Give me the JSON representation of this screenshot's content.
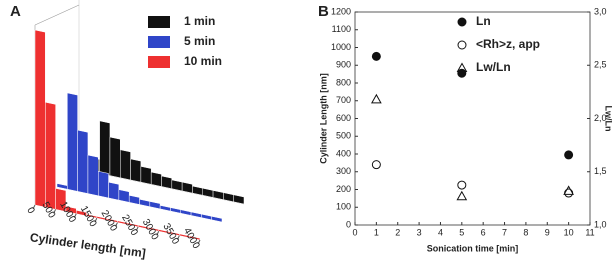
{
  "panels": [
    "A",
    "B"
  ],
  "chart_data": [
    {
      "type": "histogram",
      "xlabel": "Cylinder length [nm]",
      "bins": [
        0,
        250,
        500,
        750,
        1000,
        1250,
        1500,
        1750,
        2000,
        2250,
        2500,
        2750,
        3000,
        3250,
        3500,
        3750,
        4000
      ],
      "xlim": [
        0,
        4000
      ],
      "xticks": [
        0,
        500,
        1000,
        1500,
        2000,
        2500,
        3000,
        3500,
        4000
      ],
      "ylim": [
        0,
        100
      ],
      "series": [
        {
          "name": "1 min",
          "color": "#111111",
          "values": [
            1,
            8,
            30,
            22,
            16,
            12,
            9,
            7,
            6,
            5,
            5,
            4,
            4,
            4,
            4,
            4
          ]
        },
        {
          "name": "5 min",
          "color": "#2f45c8",
          "values": [
            2,
            55,
            35,
            22,
            14,
            9,
            6,
            4,
            3,
            3,
            2,
            2,
            2,
            2,
            2,
            2
          ]
        },
        {
          "name": "10 min",
          "color": "#ee3030",
          "values": [
            100,
            60,
            12,
            3,
            2,
            1,
            1,
            1,
            1,
            1,
            1,
            1,
            1,
            1,
            1,
            1
          ]
        }
      ]
    },
    {
      "type": "scatter",
      "xlabel": "Sonication time [min]",
      "ylabel": "Cylinder Length [nm]",
      "y2label": "Lw/Ln",
      "xlim": [
        0,
        11
      ],
      "xticks": [
        0,
        1,
        2,
        3,
        4,
        5,
        6,
        7,
        8,
        9,
        10,
        11
      ],
      "ylim": [
        0,
        1200
      ],
      "yticks": [
        0,
        100,
        200,
        300,
        400,
        500,
        600,
        700,
        800,
        900,
        1000,
        1100,
        1200
      ],
      "y2lim": [
        1.0,
        3.0
      ],
      "y2ticks": [
        {
          "value": 1.0,
          "label": "1,0"
        },
        {
          "value": 1.5,
          "label": "1,5"
        },
        {
          "value": 2.0,
          "label": "2,0"
        },
        {
          "value": 2.5,
          "label": "2,5"
        },
        {
          "value": 3.0,
          "label": "3,0"
        }
      ],
      "series": [
        {
          "name": "Ln",
          "marker": "circle-filled",
          "x": [
            1,
            5,
            10
          ],
          "values": [
            950,
            855,
            395
          ]
        },
        {
          "name": "<Rh>z, app",
          "marker": "circle-open",
          "x": [
            1,
            5,
            10
          ],
          "values": [
            340,
            225,
            180
          ]
        },
        {
          "name": "Lw/Ln",
          "marker": "triangle-open",
          "axis": "y2",
          "x": [
            1,
            5,
            10
          ],
          "values": [
            2.18,
            1.27,
            1.32
          ]
        }
      ]
    }
  ]
}
